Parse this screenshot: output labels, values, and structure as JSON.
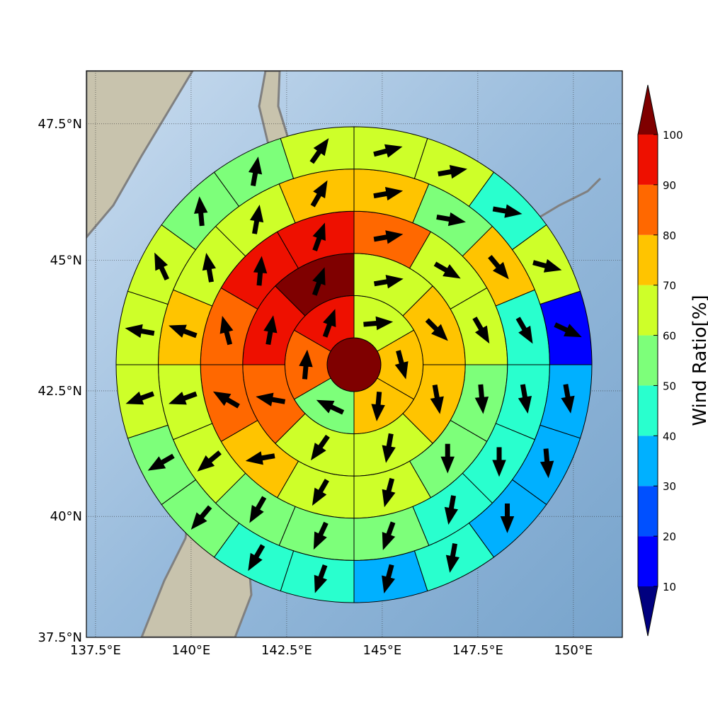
{
  "chart_data": {
    "type": "polar_wind_map",
    "xlim": [
      137.26,
      151.28
    ],
    "ylim": [
      37.5,
      48.44
    ],
    "xticks": [
      {
        "value": 137.5,
        "label": "137.5°E"
      },
      {
        "value": 140,
        "label": "140°E"
      },
      {
        "value": 142.5,
        "label": "142.5°E"
      },
      {
        "value": 145,
        "label": "145°E"
      },
      {
        "value": 147.5,
        "label": "147.5°E"
      },
      {
        "value": 150,
        "label": "150°E"
      }
    ],
    "yticks": [
      {
        "value": 37.5,
        "label": "37.5°N"
      },
      {
        "value": 40,
        "label": "40°N"
      },
      {
        "value": 42.5,
        "label": "42.5°N"
      },
      {
        "value": 45,
        "label": "45°N"
      },
      {
        "value": 47.5,
        "label": "47.5°N"
      }
    ],
    "grid": true,
    "center_value": 105,
    "rings": [
      {
        "values": [
          65,
          75,
          75,
          55,
          85,
          95
        ],
        "directions": [
          85,
          165,
          185,
          295,
          5,
          20
        ]
      },
      {
        "values": [
          65,
          75,
          75,
          65,
          65,
          85,
          95,
          105
        ],
        "directions": [
          80,
          135,
          170,
          190,
          215,
          280,
          10,
          20
        ]
      },
      {
        "values": [
          85,
          65,
          65,
          55,
          55,
          65,
          65,
          75,
          85,
          85,
          95,
          95
        ],
        "directions": [
          80,
          120,
          150,
          175,
          180,
          195,
          210,
          260,
          300,
          345,
          5,
          20
        ]
      },
      {
        "values": [
          75,
          55,
          75,
          45,
          45,
          45,
          45,
          55,
          55,
          55,
          65,
          65,
          75,
          65,
          65,
          75
        ],
        "directions": [
          80,
          100,
          140,
          150,
          170,
          180,
          190,
          200,
          205,
          210,
          230,
          250,
          290,
          350,
          10,
          30
        ]
      },
      {
        "values": [
          65,
          65,
          45,
          65,
          15,
          35,
          35,
          35,
          45,
          35,
          45,
          45,
          55,
          55,
          65,
          65,
          65,
          55,
          55,
          65
        ],
        "directions": [
          75,
          80,
          100,
          105,
          115,
          170,
          175,
          180,
          190,
          195,
          200,
          210,
          220,
          240,
          250,
          280,
          335,
          355,
          10,
          35
        ]
      }
    ],
    "colorbar": {
      "label": "Wind Ratio[%]",
      "ticks": [
        10,
        20,
        30,
        40,
        50,
        60,
        70,
        80,
        90,
        100
      ],
      "colors": [
        "#0000ff",
        "#0050ff",
        "#00b0ff",
        "#29ffce",
        "#7dff7a",
        "#ceff29",
        "#ffc400",
        "#ff6800",
        "#ee1000"
      ],
      "under_color": "#00007f",
      "over_color": "#7f0000"
    }
  }
}
